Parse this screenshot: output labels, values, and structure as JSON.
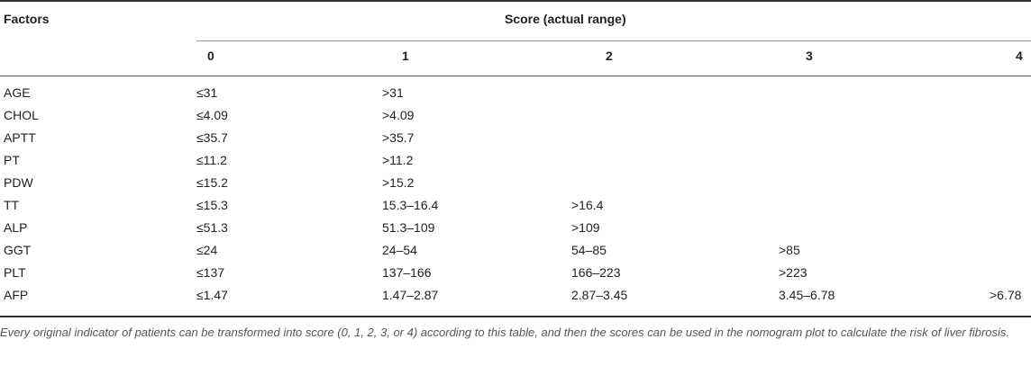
{
  "table": {
    "factors_header": "Factors",
    "score_header": "Score (actual range)",
    "score_columns": [
      "0",
      "1",
      "2",
      "3",
      "4"
    ],
    "rows": [
      {
        "factor": "AGE",
        "cells": [
          "≤31",
          ">31",
          "",
          "",
          ""
        ]
      },
      {
        "factor": "CHOL",
        "cells": [
          "≤4.09",
          ">4.09",
          "",
          "",
          ""
        ]
      },
      {
        "factor": "APTT",
        "cells": [
          "≤35.7",
          ">35.7",
          "",
          "",
          ""
        ]
      },
      {
        "factor": "PT",
        "cells": [
          "≤11.2",
          ">11.2",
          "",
          "",
          ""
        ]
      },
      {
        "factor": "PDW",
        "cells": [
          "≤15.2",
          ">15.2",
          "",
          "",
          ""
        ]
      },
      {
        "factor": "TT",
        "cells": [
          "≤15.3",
          "15.3–16.4",
          ">16.4",
          "",
          ""
        ]
      },
      {
        "factor": "ALP",
        "cells": [
          "≤51.3",
          "51.3–109",
          ">109",
          "",
          ""
        ]
      },
      {
        "factor": "GGT",
        "cells": [
          "≤24",
          "24–54",
          "54–85",
          ">85",
          ""
        ]
      },
      {
        "factor": "PLT",
        "cells": [
          "≤137",
          "137–166",
          "166–223",
          ">223",
          ""
        ]
      },
      {
        "factor": "AFP",
        "cells": [
          "≤1.47",
          "1.47–2.87",
          "2.87–3.45",
          "3.45–6.78",
          ">6.78"
        ]
      }
    ]
  },
  "footnote": "Every original indicator of patients can be transformed into score (0, 1, 2, 3, or 4) according to this table, and then the scores can be used in the nomogram plot to calculate the risk of liver fibrosis."
}
